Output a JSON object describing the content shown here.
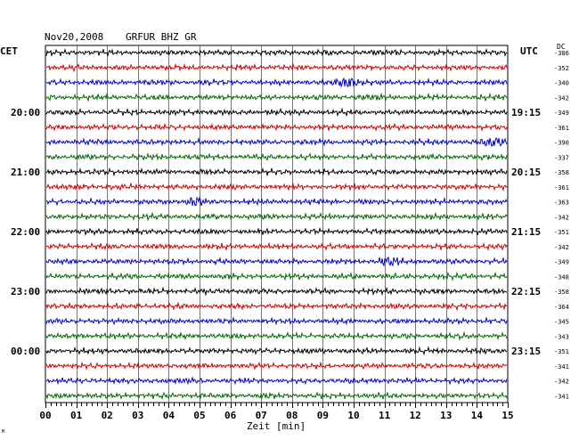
{
  "header": {
    "date": "Nov20,2008",
    "station": "GRFUR BHZ GR",
    "left_tz": "CET",
    "right_tz": "UTC",
    "dc_label": "DC"
  },
  "colors": {
    "trace_cycle": [
      "#000000",
      "#cc0000",
      "#0000cc",
      "#006600"
    ],
    "grid": "#000000",
    "background": "#ffffff"
  },
  "chart_data": {
    "type": "line",
    "title": "Nov20,2008   GRFUR BHZ GR",
    "xlabel": "Zeit [min]",
    "ylabel": "",
    "xlim": [
      0,
      15
    ],
    "x_ticks": [
      "00",
      "01",
      "02",
      "03",
      "04",
      "05",
      "06",
      "07",
      "08",
      "09",
      "10",
      "11",
      "12",
      "13",
      "14",
      "15"
    ],
    "grid": true,
    "rows": 24,
    "left_time_labels": [
      {
        "row": 4,
        "label": "20:00"
      },
      {
        "row": 8,
        "label": "21:00"
      },
      {
        "row": 12,
        "label": "22:00"
      },
      {
        "row": 16,
        "label": "23:00"
      },
      {
        "row": 20,
        "label": "00:00"
      }
    ],
    "right_time_labels": [
      {
        "row": 4,
        "label": "19:15"
      },
      {
        "row": 8,
        "label": "20:15"
      },
      {
        "row": 12,
        "label": "21:15"
      },
      {
        "row": 16,
        "label": "22:15"
      },
      {
        "row": 20,
        "label": "23:15"
      }
    ],
    "dc_offsets": [
      -386,
      -352,
      -340,
      -342,
      -349,
      -361,
      -390,
      -337,
      -358,
      -361,
      -363,
      -342,
      -351,
      -342,
      -349,
      -348,
      -358,
      -364,
      -345,
      -343,
      -351,
      -341,
      -342,
      -341
    ],
    "events": [
      {
        "row": 2,
        "minute": 9.85,
        "strength": 1.6
      },
      {
        "row": 6,
        "minute": 14.6,
        "strength": 1.4
      },
      {
        "row": 10,
        "minute": 4.9,
        "strength": 1.2
      },
      {
        "row": 14,
        "minute": 11.1,
        "strength": 1.1
      }
    ]
  },
  "footer": {
    "corner_mark": "M"
  }
}
